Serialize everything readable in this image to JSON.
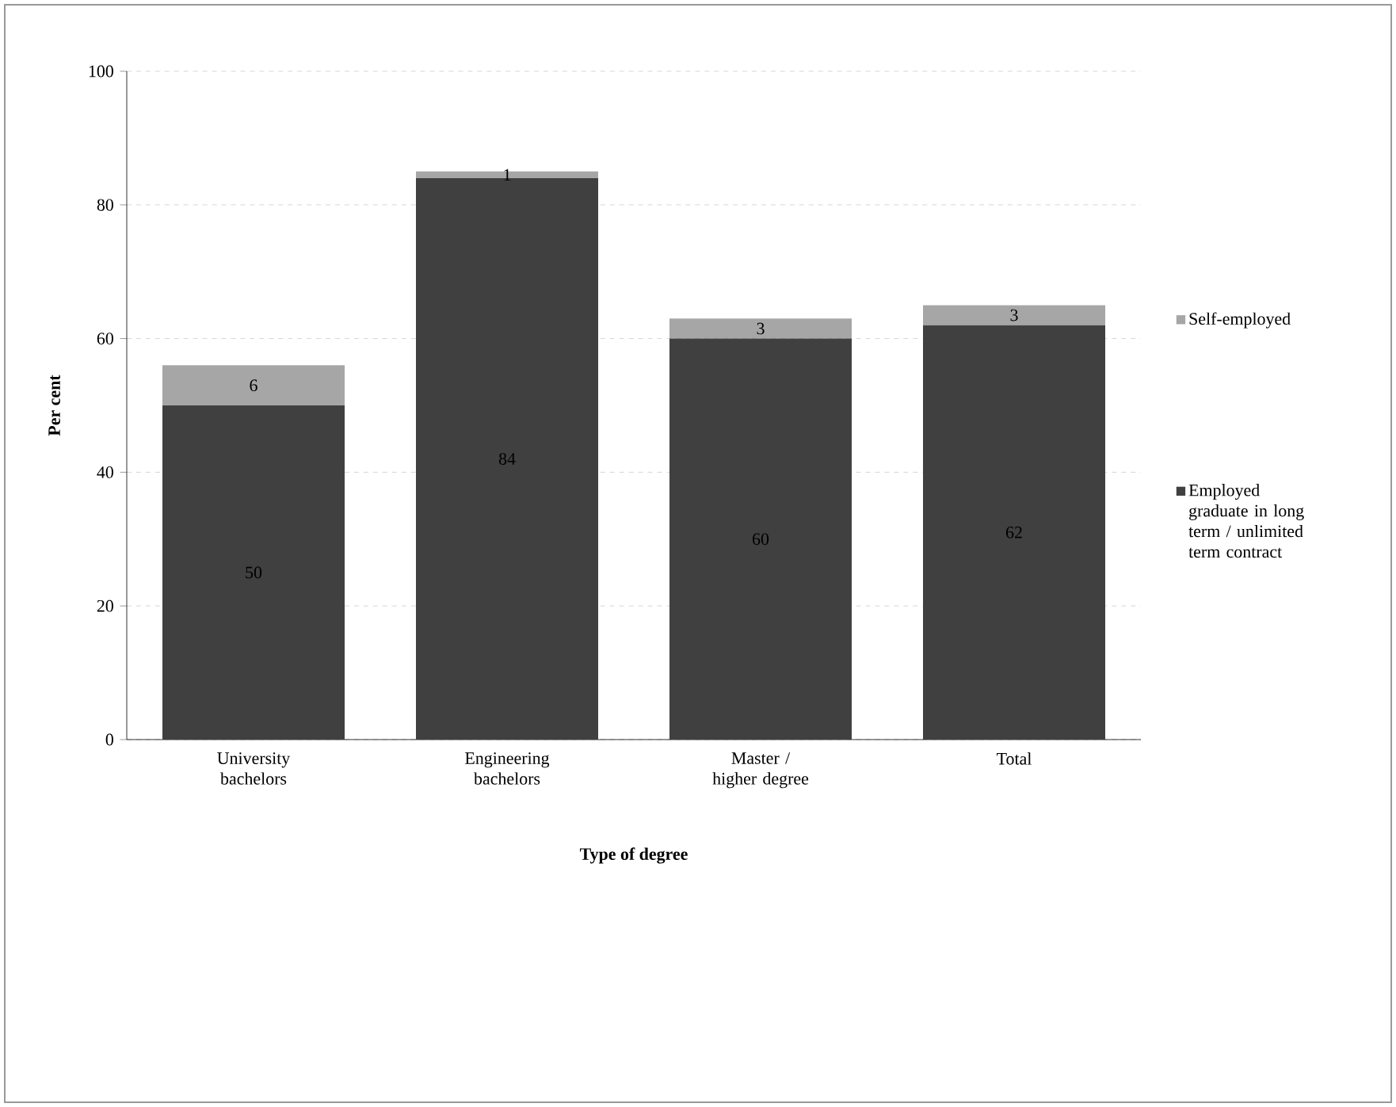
{
  "chart_data": {
    "type": "bar",
    "stacked": true,
    "xlabel": "Type of degree",
    "ylabel": "Per cent",
    "categories": [
      "University bachelors",
      "Engineering bachelors",
      "Master / higher degree",
      "Total"
    ],
    "series": [
      {
        "name": "Employed graduate in long term / unlimited term contract",
        "color": "#404040",
        "values": [
          50,
          84,
          60,
          62
        ]
      },
      {
        "name": "Self-employed",
        "color": "#a6a6a6",
        "values": [
          6,
          1,
          3,
          3
        ]
      }
    ],
    "ylim": [
      0,
      100
    ],
    "yticks": [
      0,
      20,
      40,
      60,
      80,
      100
    ],
    "grid": "y",
    "legend": "right",
    "data_labels": true
  }
}
